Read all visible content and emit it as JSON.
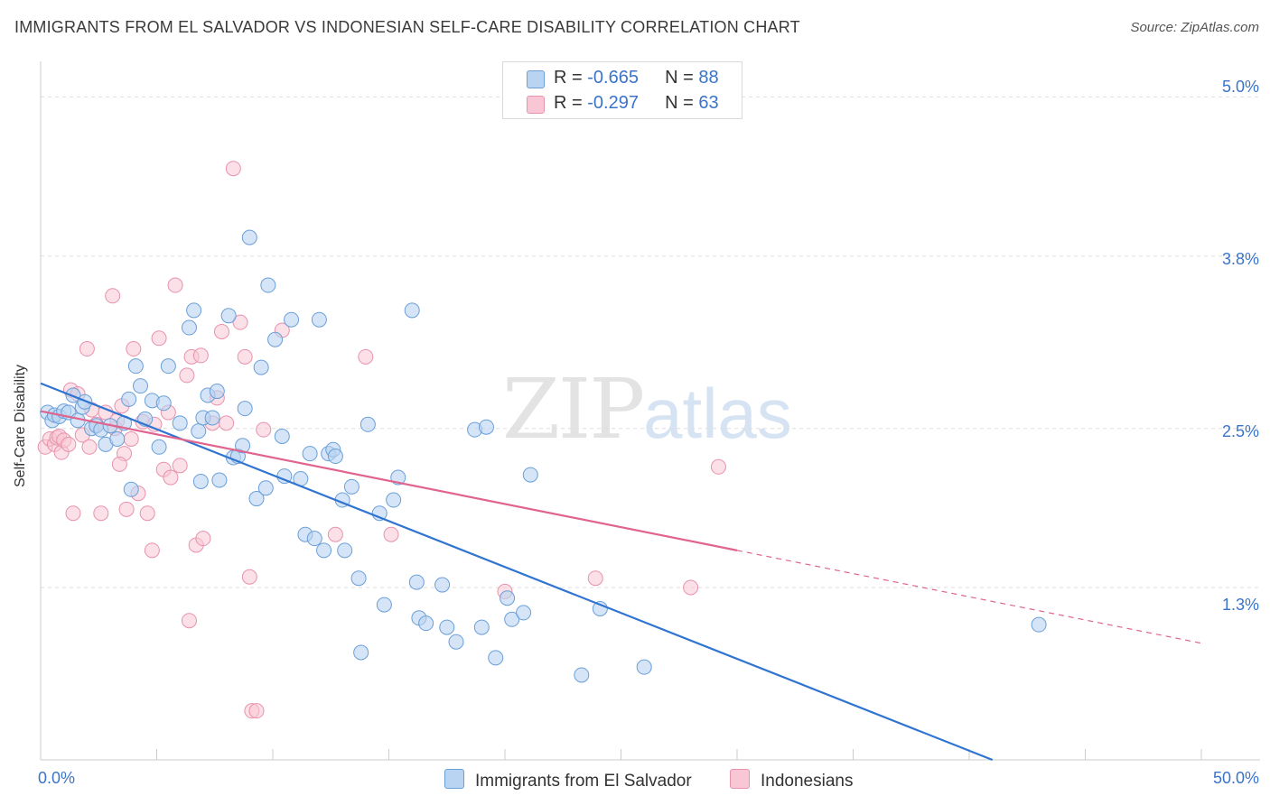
{
  "title": "IMMIGRANTS FROM EL SALVADOR VS INDONESIAN SELF-CARE DISABILITY CORRELATION CHART",
  "source": "Source: ZipAtlas.com",
  "watermark": {
    "zip": "ZIP",
    "atlas": "atlas"
  },
  "legend": {
    "series1": {
      "r_label": "R = ",
      "r_value": "-0.665",
      "n_label": "N = ",
      "n_value": "88"
    },
    "series2": {
      "r_label": "R = ",
      "r_value": "-0.297",
      "n_label": "N = ",
      "n_value": "63"
    }
  },
  "colors": {
    "blue_fill": "#b9d3f2",
    "blue_stroke": "#6a9fd8",
    "blue_line": "#2f74d0",
    "pink_fill": "#f8c6d4",
    "pink_stroke": "#e892ad",
    "pink_line": "#e0648e",
    "grid": "#dddddd",
    "tick_label": "#3a74c9"
  },
  "chart_data": {
    "type": "scatter",
    "title": "IMMIGRANTS FROM EL SALVADOR VS INDONESIAN SELF-CARE DISABILITY CORRELATION CHART",
    "xlabel": "",
    "ylabel": "Self-Care Disability",
    "xlim": [
      0,
      50
    ],
    "ylim": [
      0,
      5.2
    ],
    "x_ticks": [
      0,
      5,
      10,
      15,
      20,
      25,
      30,
      35,
      40,
      45,
      50
    ],
    "x_tick_labels": {
      "0": "0.0%",
      "50": "50.0%"
    },
    "y_ticks": [
      1.3,
      2.5,
      3.8,
      5.0
    ],
    "y_tick_labels": [
      "1.3%",
      "2.5%",
      "3.8%",
      "5.0%"
    ],
    "grid": true,
    "legend_position": "top-center",
    "series": [
      {
        "name": "Immigrants from El Salvador",
        "color": "#b9d3f2",
        "trend": {
          "x": [
            0,
            41
          ],
          "y": [
            2.84,
            0.0
          ]
        },
        "points": [
          [
            0.3,
            2.62
          ],
          [
            0.5,
            2.56
          ],
          [
            0.6,
            2.6
          ],
          [
            0.8,
            2.59
          ],
          [
            1.0,
            2.63
          ],
          [
            1.2,
            2.62
          ],
          [
            1.4,
            2.75
          ],
          [
            1.6,
            2.56
          ],
          [
            1.8,
            2.66
          ],
          [
            1.9,
            2.7
          ],
          [
            2.2,
            2.5
          ],
          [
            2.4,
            2.52
          ],
          [
            2.6,
            2.49
          ],
          [
            2.8,
            2.38
          ],
          [
            3.0,
            2.52
          ],
          [
            3.3,
            2.42
          ],
          [
            3.6,
            2.54
          ],
          [
            3.8,
            2.72
          ],
          [
            3.9,
            2.04
          ],
          [
            4.1,
            2.97
          ],
          [
            4.3,
            2.82
          ],
          [
            4.5,
            2.57
          ],
          [
            4.8,
            2.71
          ],
          [
            5.1,
            2.36
          ],
          [
            5.3,
            2.69
          ],
          [
            5.5,
            2.97
          ],
          [
            6.0,
            2.54
          ],
          [
            6.4,
            3.26
          ],
          [
            6.6,
            3.39
          ],
          [
            6.8,
            2.48
          ],
          [
            6.9,
            2.1
          ],
          [
            7.0,
            2.58
          ],
          [
            7.2,
            2.75
          ],
          [
            7.4,
            2.58
          ],
          [
            7.6,
            2.78
          ],
          [
            7.7,
            2.11
          ],
          [
            8.1,
            3.35
          ],
          [
            8.3,
            2.28
          ],
          [
            8.5,
            2.29
          ],
          [
            8.7,
            2.37
          ],
          [
            8.8,
            2.65
          ],
          [
            9.0,
            3.94
          ],
          [
            9.3,
            1.97
          ],
          [
            9.5,
            2.96
          ],
          [
            9.7,
            2.05
          ],
          [
            9.8,
            3.58
          ],
          [
            10.1,
            3.17
          ],
          [
            10.4,
            2.44
          ],
          [
            10.5,
            2.14
          ],
          [
            10.8,
            3.32
          ],
          [
            11.2,
            2.12
          ],
          [
            11.4,
            1.7
          ],
          [
            11.6,
            2.31
          ],
          [
            11.8,
            1.67
          ],
          [
            12.0,
            3.32
          ],
          [
            12.2,
            1.58
          ],
          [
            12.4,
            2.31
          ],
          [
            12.6,
            2.34
          ],
          [
            12.7,
            2.29
          ],
          [
            13.0,
            1.96
          ],
          [
            13.1,
            1.58
          ],
          [
            13.4,
            2.06
          ],
          [
            13.7,
            1.37
          ],
          [
            13.8,
            0.81
          ],
          [
            14.1,
            2.53
          ],
          [
            14.6,
            1.86
          ],
          [
            14.8,
            1.17
          ],
          [
            15.2,
            1.96
          ],
          [
            15.4,
            2.13
          ],
          [
            16.0,
            3.39
          ],
          [
            16.2,
            1.34
          ],
          [
            16.3,
            1.07
          ],
          [
            16.6,
            1.03
          ],
          [
            17.3,
            1.32
          ],
          [
            17.5,
            1.0
          ],
          [
            17.9,
            0.89
          ],
          [
            18.7,
            2.49
          ],
          [
            19.2,
            2.51
          ],
          [
            19.0,
            1.0
          ],
          [
            19.6,
            0.77
          ],
          [
            20.1,
            1.22
          ],
          [
            20.3,
            1.06
          ],
          [
            20.8,
            1.11
          ],
          [
            21.1,
            2.15
          ],
          [
            23.3,
            0.64
          ],
          [
            24.1,
            1.14
          ],
          [
            26.0,
            0.7
          ],
          [
            43.0,
            1.02
          ]
        ]
      },
      {
        "name": "Indonesians",
        "color": "#f8c6d4",
        "trend": {
          "x": [
            0,
            30
          ],
          "y": [
            2.63,
            1.58
          ],
          "dash_x": [
            30,
            50
          ],
          "dash_y": [
            1.58,
            0.88
          ]
        },
        "points": [
          [
            0.2,
            2.36
          ],
          [
            0.4,
            2.42
          ],
          [
            0.6,
            2.38
          ],
          [
            0.7,
            2.43
          ],
          [
            0.8,
            2.44
          ],
          [
            0.9,
            2.32
          ],
          [
            1.0,
            2.41
          ],
          [
            1.2,
            2.38
          ],
          [
            1.3,
            2.79
          ],
          [
            1.4,
            1.86
          ],
          [
            1.6,
            2.76
          ],
          [
            1.8,
            2.45
          ],
          [
            2.0,
            3.1
          ],
          [
            2.2,
            2.64
          ],
          [
            2.4,
            2.53
          ],
          [
            2.6,
            1.86
          ],
          [
            2.8,
            2.62
          ],
          [
            3.1,
            3.5
          ],
          [
            3.2,
            2.5
          ],
          [
            3.3,
            2.56
          ],
          [
            3.5,
            2.67
          ],
          [
            3.6,
            2.31
          ],
          [
            3.7,
            1.89
          ],
          [
            3.9,
            2.42
          ],
          [
            4.0,
            3.1
          ],
          [
            4.2,
            2.01
          ],
          [
            4.4,
            2.55
          ],
          [
            4.6,
            1.86
          ],
          [
            4.8,
            1.58
          ],
          [
            4.9,
            2.53
          ],
          [
            5.1,
            3.18
          ],
          [
            5.3,
            2.19
          ],
          [
            5.5,
            2.62
          ],
          [
            5.8,
            3.58
          ],
          [
            6.0,
            2.22
          ],
          [
            6.3,
            2.9
          ],
          [
            6.4,
            1.05
          ],
          [
            6.5,
            3.04
          ],
          [
            6.7,
            1.62
          ],
          [
            6.9,
            3.05
          ],
          [
            7.0,
            1.67
          ],
          [
            7.4,
            2.54
          ],
          [
            7.6,
            2.73
          ],
          [
            7.8,
            3.23
          ],
          [
            8.0,
            2.54
          ],
          [
            8.3,
            4.46
          ],
          [
            8.6,
            3.3
          ],
          [
            8.8,
            3.04
          ],
          [
            9.0,
            1.38
          ],
          [
            9.1,
            0.37
          ],
          [
            9.3,
            0.37
          ],
          [
            9.6,
            2.49
          ],
          [
            10.4,
            3.24
          ],
          [
            12.7,
            1.7
          ],
          [
            14.0,
            3.04
          ],
          [
            15.1,
            1.7
          ],
          [
            20.0,
            1.27
          ],
          [
            23.9,
            1.37
          ],
          [
            28.0,
            1.3
          ],
          [
            29.2,
            2.21
          ],
          [
            2.1,
            2.36
          ],
          [
            3.4,
            2.23
          ],
          [
            5.6,
            2.13
          ]
        ]
      }
    ]
  },
  "axis": {
    "ylabel": "Self-Care Disability",
    "y_ticks": [
      "5.0%",
      "3.8%",
      "2.5%",
      "1.3%"
    ],
    "x_min": "0.0%",
    "x_max": "50.0%"
  },
  "bottom_legend": {
    "item1": "Immigrants from El Salvador",
    "item2": "Indonesians"
  }
}
